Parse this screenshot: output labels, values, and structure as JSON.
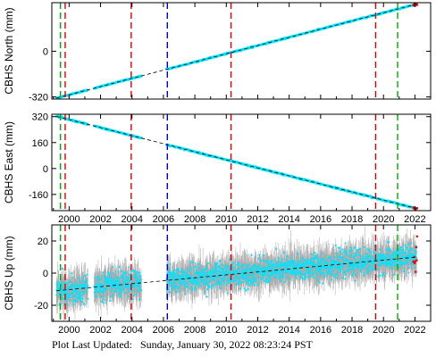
{
  "footer": {
    "label": "Plot Last Updated:",
    "value": "Sunday, January 30, 2022 08:23:24 PST"
  },
  "colors": {
    "data": "#00e5ff",
    "error": "#a9a9a9",
    "model": "#000000",
    "red_line": "#dd0000",
    "green_line": "#00aa00",
    "blue_line": "#0000cc",
    "red_marks": "#ff0000"
  },
  "chart_data": [
    {
      "type": "scatter",
      "ylabel": "CBHS North (mm)",
      "xlim": [
        1998.9,
        2023.0
      ],
      "ylim": [
        -335,
        340
      ],
      "yticks": [
        -320,
        0
      ],
      "xticks": [
        2000,
        2002,
        2004,
        2006,
        2008,
        2010,
        2012,
        2014,
        2016,
        2018,
        2020,
        2022
      ],
      "show_xtick_labels": false,
      "trend": {
        "start": [
          1999.2,
          -328
        ],
        "end": [
          2022.1,
          330
        ]
      },
      "data_segments": [
        [
          1999.2,
          2001.2
        ],
        [
          2001.6,
          2004.6
        ],
        [
          2006.2,
          2022.1
        ]
      ],
      "vlines": [
        {
          "x": 1999.45,
          "color": "green"
        },
        {
          "x": 1999.75,
          "color": "red"
        },
        {
          "x": 2003.95,
          "color": "red"
        },
        {
          "x": 2006.25,
          "color": "blue"
        },
        {
          "x": 2010.3,
          "color": "red"
        },
        {
          "x": 2019.5,
          "color": "red"
        },
        {
          "x": 2020.9,
          "color": "green"
        }
      ]
    },
    {
      "type": "scatter",
      "ylabel": "CBHS East (mm)",
      "xlim": [
        1998.9,
        2023.0
      ],
      "ylim": [
        -260,
        335
      ],
      "yticks": [
        -160,
        0,
        160,
        320
      ],
      "xticks": [
        2000,
        2002,
        2004,
        2006,
        2008,
        2010,
        2012,
        2014,
        2016,
        2018,
        2020,
        2022
      ],
      "show_xtick_labels": true,
      "trend": {
        "start": [
          1999.2,
          322
        ],
        "end": [
          2022.1,
          -247
        ]
      },
      "data_segments": [
        [
          1999.2,
          2001.2
        ],
        [
          2001.6,
          2004.6
        ],
        [
          2006.2,
          2022.1
        ]
      ],
      "vlines": [
        {
          "x": 1999.45,
          "color": "green"
        },
        {
          "x": 1999.75,
          "color": "red"
        },
        {
          "x": 2003.95,
          "color": "red"
        },
        {
          "x": 2006.25,
          "color": "blue"
        },
        {
          "x": 2010.3,
          "color": "red"
        },
        {
          "x": 2019.5,
          "color": "red"
        },
        {
          "x": 2020.9,
          "color": "green"
        }
      ]
    },
    {
      "type": "scatter",
      "ylabel": "CBHS Up (mm)",
      "xlim": [
        1998.9,
        2023.0
      ],
      "ylim": [
        -30,
        30
      ],
      "yticks": [
        -20,
        0,
        20
      ],
      "xticks": [
        2000,
        2002,
        2004,
        2006,
        2008,
        2010,
        2012,
        2014,
        2016,
        2018,
        2020,
        2022
      ],
      "show_xtick_labels": true,
      "trend": {
        "start": [
          1999.2,
          -11
        ],
        "end": [
          2022.1,
          10
        ]
      },
      "data_segments": [
        [
          1999.2,
          2001.2
        ],
        [
          2001.6,
          2004.6
        ],
        [
          2006.2,
          2022.1
        ]
      ],
      "scatter_sd": 4,
      "error_sd": 9,
      "vlines": [
        {
          "x": 1999.45,
          "color": "green"
        },
        {
          "x": 1999.75,
          "color": "red"
        },
        {
          "x": 2003.95,
          "color": "red"
        },
        {
          "x": 2006.25,
          "color": "blue"
        },
        {
          "x": 2010.3,
          "color": "red"
        },
        {
          "x": 2019.5,
          "color": "red"
        },
        {
          "x": 2020.9,
          "color": "green"
        }
      ]
    }
  ]
}
